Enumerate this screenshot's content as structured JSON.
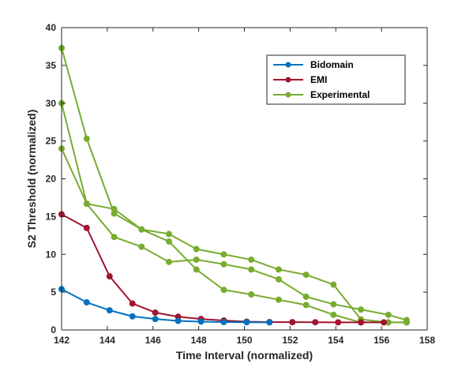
{
  "chart_data": {
    "type": "line",
    "title": "",
    "xlabel": "Time Interval (normalized)",
    "ylabel": "S2 Threshold (normalized)",
    "xlim": [
      142,
      158
    ],
    "ylim": [
      0,
      40
    ],
    "xticks": [
      142,
      144,
      146,
      148,
      150,
      152,
      154,
      156,
      158
    ],
    "yticks": [
      0,
      5,
      10,
      15,
      20,
      25,
      30,
      35,
      40
    ],
    "grid": false,
    "legend_position": "top-right",
    "legend": [
      "Bidomain",
      "EMI",
      "Experimental"
    ],
    "series": [
      {
        "name": "Bidomain",
        "color": "#0072BD",
        "marker": "circle",
        "x": [
          142,
          143.1,
          144.1,
          145.1,
          146.1,
          147.1,
          148.1,
          149.1,
          150.1,
          151.1
        ],
        "y": [
          5.4,
          3.65,
          2.6,
          1.8,
          1.45,
          1.2,
          1.1,
          1.05,
          1.02,
          1.0
        ]
      },
      {
        "name": "EMI",
        "color": "#A2142F",
        "marker": "circle",
        "x": [
          142,
          143.1,
          144.1,
          145.1,
          146.1,
          147.1,
          148.1,
          149.1,
          150.1,
          151.1,
          152.1,
          153.1,
          154.1,
          155.1,
          156.1
        ],
        "y": [
          15.3,
          13.5,
          7.1,
          3.5,
          2.3,
          1.75,
          1.45,
          1.25,
          1.1,
          1.05,
          1.03,
          1.02,
          1.01,
          1.0,
          1.0
        ]
      },
      {
        "name": "Experimental",
        "color": "#77AC30",
        "marker": "circle",
        "show_in_legend": true,
        "x": [
          142,
          143.1,
          144.3,
          145.5,
          146.7,
          147.9,
          149.1,
          150.3,
          151.5,
          152.7,
          153.9,
          155.1,
          156.3,
          157.1
        ],
        "y": [
          37.3,
          25.3,
          15.4,
          13.3,
          12.7,
          10.7,
          10.0,
          9.3,
          8.0,
          7.3,
          6.0,
          1.4,
          1.0,
          1.0
        ]
      },
      {
        "name": "",
        "color": "#77AC30",
        "marker": "circle",
        "show_in_legend": false,
        "x": [
          142,
          143.1,
          144.3,
          145.5,
          146.7,
          147.9,
          149.1,
          150.3,
          151.5,
          152.7,
          153.9,
          155.1,
          156.3,
          157.1
        ],
        "y": [
          30.0,
          16.7,
          16.0,
          13.3,
          11.7,
          8.0,
          5.3,
          4.7,
          4.0,
          3.3,
          2.0,
          1.0,
          1.0,
          1.0
        ]
      },
      {
        "name": "",
        "color": "#77AC30",
        "marker": "circle",
        "show_in_legend": false,
        "x": [
          142,
          143.1,
          144.3,
          145.5,
          146.7,
          147.9,
          149.1,
          150.3,
          151.5,
          152.7,
          153.9,
          155.1,
          156.3,
          157.1
        ],
        "y": [
          24.0,
          16.7,
          12.3,
          11.0,
          9.0,
          9.3,
          8.7,
          8.0,
          6.7,
          4.4,
          3.4,
          2.7,
          2.0,
          1.3
        ]
      }
    ]
  }
}
